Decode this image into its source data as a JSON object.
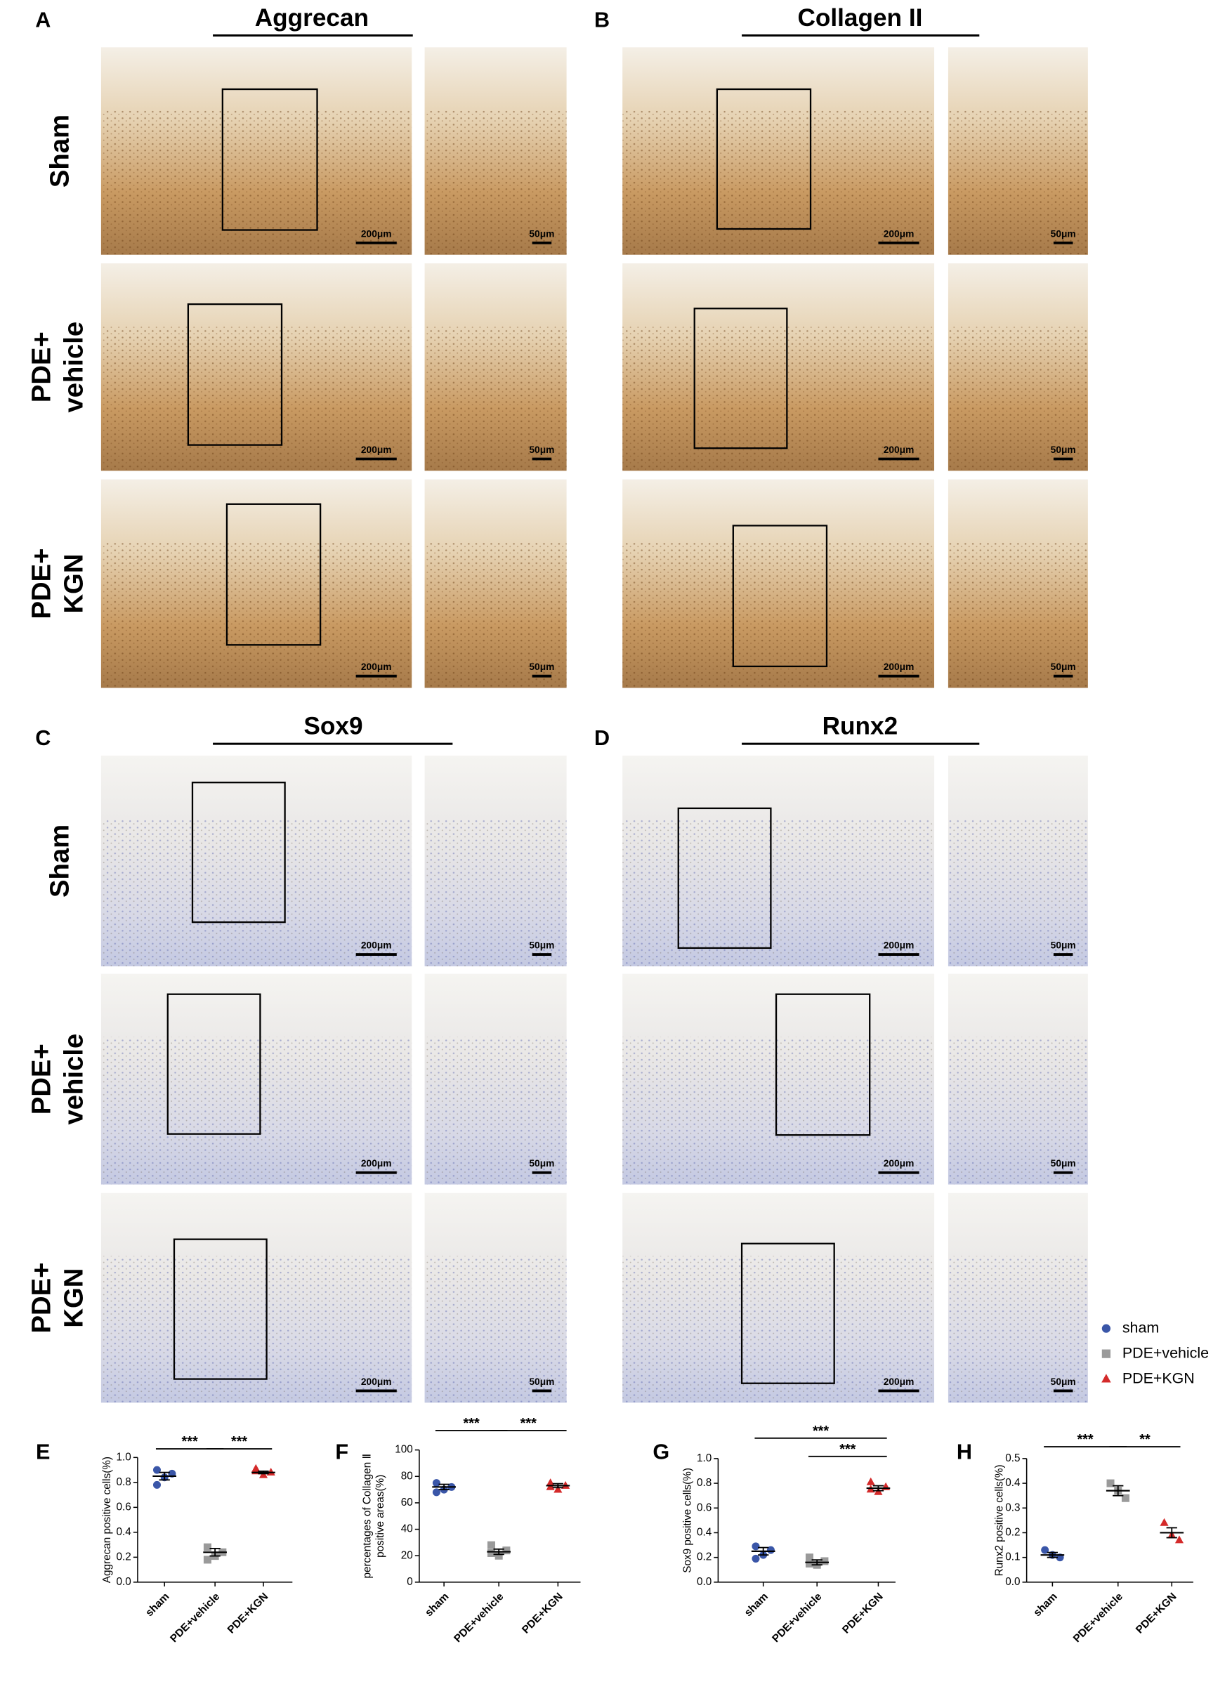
{
  "panels": [
    {
      "letter": "A",
      "title": "Aggrecan",
      "stain": "brown",
      "scale_bars": [
        "200μm",
        "50μm"
      ],
      "row_labels": [
        [
          "Sham"
        ],
        [
          "PDE+",
          "vehicle"
        ],
        [
          "PDE+",
          "KGN"
        ]
      ]
    },
    {
      "letter": "B",
      "title": "Collagen II",
      "stain": "brown",
      "scale_bars": [
        "200μm",
        "50μm"
      ]
    },
    {
      "letter": "C",
      "title": "Sox9",
      "stain": "blue",
      "scale_bars": [
        "200μm",
        "50μm"
      ],
      "row_labels": [
        [
          "Sham"
        ],
        [
          "PDE+",
          "vehicle"
        ],
        [
          "PDE+",
          "KGN"
        ]
      ]
    },
    {
      "letter": "D",
      "title": "Runx2",
      "stain": "blue",
      "scale_bars": [
        "200μm",
        "50μm"
      ]
    }
  ],
  "chart_data": [
    {
      "type": "dotplot",
      "letter": "E",
      "ylabel": [
        "Aggrecan positive cells(%)"
      ],
      "ylim": [
        0,
        1.0
      ],
      "yticks": [
        {
          "value": 0,
          "label": "0.0"
        },
        0.2,
        0.4,
        0.6,
        0.8,
        {
          "value": 1.0,
          "label": "1.0"
        }
      ],
      "series": [
        {
          "name": "sham",
          "color": "#3a56a8",
          "marker": "circle",
          "values": [
            0.9,
            0.87,
            0.84,
            0.78
          ],
          "mean": 0.85,
          "sem": 0.03
        },
        {
          "name": "PDE+vehicle",
          "color": "#9a9a9a",
          "marker": "square",
          "values": [
            0.28,
            0.24,
            0.21,
            0.18
          ],
          "mean": 0.24,
          "sem": 0.03
        },
        {
          "name": "PDE+KGN",
          "color": "#d42a2a",
          "marker": "triangle",
          "values": [
            0.91,
            0.88,
            0.86,
            0.89
          ],
          "mean": 0.88,
          "sem": 0.01
        }
      ],
      "annotations": [
        {
          "text": "***",
          "between": [
            "sham",
            "PDE+vehicle"
          ]
        },
        {
          "text": "***",
          "between": [
            "PDE+vehicle",
            "PDE+KGN"
          ]
        }
      ]
    },
    {
      "type": "dotplot",
      "letter": "F",
      "ylabel": [
        "percentages of Collagen Ⅱ",
        "positive areas(%)"
      ],
      "ylim": [
        0,
        100
      ],
      "yticks": [
        0,
        20,
        40,
        60,
        80,
        100
      ],
      "series": [
        {
          "name": "sham",
          "color": "#3a56a8",
          "marker": "circle",
          "values": [
            75,
            72,
            70,
            68
          ],
          "mean": 72,
          "sem": 2
        },
        {
          "name": "PDE+vehicle",
          "color": "#9a9a9a",
          "marker": "square",
          "values": [
            28,
            24,
            20,
            22
          ],
          "mean": 23,
          "sem": 2
        },
        {
          "name": "PDE+KGN",
          "color": "#d42a2a",
          "marker": "triangle",
          "values": [
            75,
            73,
            70,
            72
          ],
          "mean": 73,
          "sem": 1.5
        }
      ],
      "annotations": [
        {
          "text": "***",
          "between": [
            "sham",
            "PDE+vehicle"
          ]
        },
        {
          "text": "***",
          "between": [
            "PDE+vehicle",
            "PDE+KGN"
          ]
        }
      ]
    },
    {
      "type": "dotplot",
      "letter": "G",
      "ylabel": [
        "Sox9 positive cells(%)"
      ],
      "ylim": [
        0,
        1.0
      ],
      "yticks": [
        {
          "value": 0,
          "label": "0.0"
        },
        0.2,
        0.4,
        0.6,
        0.8,
        {
          "value": 1.0,
          "label": "1.0"
        }
      ],
      "series": [
        {
          "name": "sham",
          "color": "#3a56a8",
          "marker": "circle",
          "values": [
            0.29,
            0.26,
            0.22,
            0.19
          ],
          "mean": 0.25,
          "sem": 0.03
        },
        {
          "name": "PDE+vehicle",
          "color": "#9a9a9a",
          "marker": "square",
          "values": [
            0.2,
            0.17,
            0.14,
            0.15
          ],
          "mean": 0.16,
          "sem": 0.02
        },
        {
          "name": "PDE+KGN",
          "color": "#d42a2a",
          "marker": "triangle",
          "values": [
            0.81,
            0.77,
            0.73,
            0.75
          ],
          "mean": 0.76,
          "sem": 0.02
        }
      ],
      "annotations": [
        {
          "text": "***",
          "between": [
            "sham",
            "PDE+KGN"
          ]
        },
        {
          "text": "***",
          "between": [
            "PDE+vehicle",
            "PDE+KGN"
          ]
        }
      ]
    },
    {
      "type": "dotplot",
      "letter": "H",
      "ylabel": [
        "Runx2 positive cells(%)"
      ],
      "ylim": [
        0,
        0.5
      ],
      "yticks": [
        {
          "value": 0,
          "label": "0.0"
        },
        0.1,
        0.2,
        0.3,
        0.4,
        0.5
      ],
      "series": [
        {
          "name": "sham",
          "color": "#3a56a8",
          "marker": "circle",
          "values": [
            0.13,
            0.11,
            0.1
          ],
          "mean": 0.11,
          "sem": 0.01
        },
        {
          "name": "PDE+vehicle",
          "color": "#9a9a9a",
          "marker": "square",
          "values": [
            0.4,
            0.37,
            0.34
          ],
          "mean": 0.37,
          "sem": 0.02
        },
        {
          "name": "PDE+KGN",
          "color": "#d42a2a",
          "marker": "triangle",
          "values": [
            0.24,
            0.19,
            0.17
          ],
          "mean": 0.2,
          "sem": 0.02
        }
      ],
      "annotations": [
        {
          "text": "***",
          "between": [
            "sham",
            "PDE+vehicle"
          ]
        },
        {
          "text": "**",
          "between": [
            "PDE+vehicle",
            "PDE+KGN"
          ]
        }
      ]
    }
  ]
}
